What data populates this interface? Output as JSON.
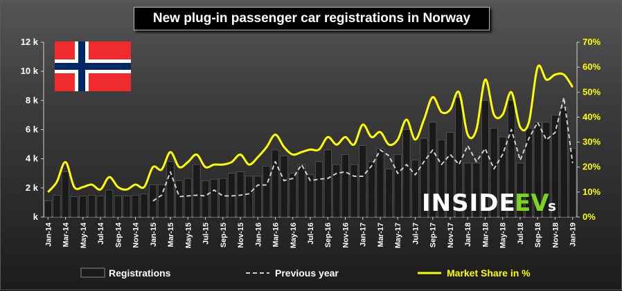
{
  "chart_data": {
    "type": "bar",
    "title": "New plug-in passenger car registrations in Norway",
    "categories": [
      "Jan-14",
      "Feb-14",
      "Mar-14",
      "Apr-14",
      "May-14",
      "Jun-14",
      "Jul-14",
      "Aug-14",
      "Sep-14",
      "Oct-14",
      "Nov-14",
      "Dec-14",
      "Jan-15",
      "Feb-15",
      "Mar-15",
      "Apr-15",
      "May-15",
      "Jun-15",
      "Jul-15",
      "Aug-15",
      "Sep-15",
      "Oct-15",
      "Nov-15",
      "Dec-15",
      "Jan-16",
      "Feb-16",
      "Mar-16",
      "Apr-16",
      "May-16",
      "Jun-16",
      "Jul-16",
      "Aug-16",
      "Sep-16",
      "Oct-16",
      "Nov-16",
      "Dec-16",
      "Jan-17",
      "Feb-17",
      "Mar-17",
      "Apr-17",
      "May-17",
      "Jun-17",
      "Jul-17",
      "Aug-17",
      "Sep-17",
      "Oct-17",
      "Nov-17",
      "Dec-17",
      "Jan-18",
      "Feb-18",
      "Mar-18",
      "Apr-18",
      "May-18",
      "Jun-18",
      "Jul-18",
      "Aug-18",
      "Sep-18",
      "Oct-18",
      "Nov-18",
      "Dec-18",
      "Jan-19"
    ],
    "x_tick_labels": [
      "Jan-14",
      "Mar-14",
      "May-14",
      "Jul-14",
      "Sep-14",
      "Nov-14",
      "Jan-15",
      "Mar-15",
      "May-15",
      "Jul-15",
      "Sep-15",
      "Nov-15",
      "Jan-16",
      "Mar-16",
      "May-16",
      "Jul-16",
      "Sep-16",
      "Nov-16",
      "Jan-17",
      "Mar-17",
      "May-17",
      "Jul-17",
      "Sep-17",
      "Nov-17",
      "Jan-18",
      "Mar-18",
      "May-18",
      "Jul-18",
      "Sep-18",
      "Nov-18",
      "Jan-19"
    ],
    "series": [
      {
        "name": "Registrations",
        "type": "bar",
        "color": "#1a1a1a",
        "axis": "left",
        "values": [
          1100,
          1500,
          3100,
          1400,
          1450,
          1500,
          1450,
          1850,
          1450,
          1450,
          1500,
          1600,
          2200,
          2200,
          3800,
          2500,
          2650,
          3600,
          2500,
          2600,
          2650,
          3000,
          3100,
          2800,
          2800,
          3500,
          4600,
          4200,
          3000,
          3600,
          2900,
          3800,
          4600,
          3600,
          4300,
          3600,
          4900,
          3800,
          4700,
          3300,
          4300,
          6000,
          3900,
          5400,
          6500,
          5300,
          5800,
          8200,
          3700,
          3700,
          8000,
          6100,
          5500,
          8000,
          3700,
          6100,
          6500,
          6500,
          7000,
          7500,
          4700
        ]
      },
      {
        "name": "Previous year",
        "type": "line",
        "style": "dashed",
        "color": "#d0d0d0",
        "axis": "left",
        "values": [
          null,
          null,
          null,
          null,
          null,
          null,
          null,
          null,
          null,
          null,
          null,
          null,
          1100,
          1500,
          3100,
          1400,
          1450,
          1500,
          1450,
          1850,
          1450,
          1450,
          1500,
          1600,
          2200,
          2200,
          3800,
          2500,
          2650,
          3600,
          2500,
          2600,
          2650,
          3000,
          3100,
          2800,
          2800,
          3500,
          4600,
          4200,
          3000,
          3600,
          2900,
          3800,
          4600,
          3600,
          4300,
          3600,
          4900,
          3800,
          4700,
          3300,
          4300,
          6000,
          3900,
          5400,
          6500,
          5300,
          5800,
          8200,
          3700
        ]
      },
      {
        "name": "Market Share in %",
        "type": "line",
        "color": "#ffff00",
        "axis": "right",
        "values": [
          10,
          14,
          22,
          12,
          12,
          13,
          11,
          16,
          12,
          11,
          13,
          12,
          20,
          19,
          26,
          20,
          22,
          25,
          20,
          21,
          21,
          22,
          25,
          21,
          24,
          28,
          33,
          28,
          25,
          26,
          27,
          27,
          32,
          29,
          32,
          29,
          37,
          32,
          34,
          29,
          31,
          39,
          31,
          39,
          48,
          42,
          43,
          50,
          33,
          35,
          55,
          41,
          41,
          50,
          36,
          38,
          60,
          55,
          57,
          57,
          52
        ]
      }
    ],
    "y_left": {
      "ticks": [
        "k",
        "2 k",
        "4 k",
        "6 k",
        "8 k",
        "10 k",
        "12 k"
      ],
      "range": [
        0,
        12000
      ]
    },
    "y_right": {
      "ticks": [
        "0%",
        "10%",
        "20%",
        "30%",
        "40%",
        "50%",
        "60%",
        "70%"
      ],
      "range": [
        0,
        70
      ]
    },
    "legend": {
      "placement": "bottom",
      "items": [
        "Registrations",
        "Previous year",
        "Market Share in %"
      ]
    },
    "grid": false
  },
  "logo": {
    "part1": "INSIDE",
    "part2": "EV",
    "part3": "s"
  },
  "colors": {
    "bar": "#1a1a1a",
    "share_line": "#ffff00",
    "prev_line": "#d0d0d0",
    "flag_red": "#ef2b2d",
    "flag_blue": "#002868"
  }
}
